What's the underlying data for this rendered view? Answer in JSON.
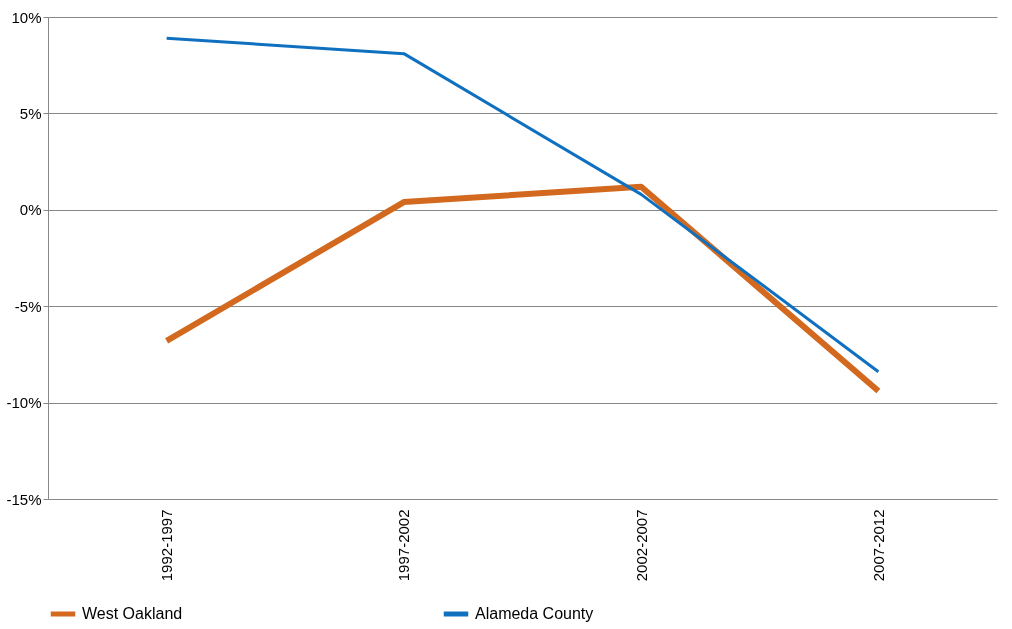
{
  "chart_data": {
    "type": "line",
    "categories": [
      "1992-1997",
      "1997-2002",
      "2002-2007",
      "2007-2012"
    ],
    "series": [
      {
        "name": "West Oakland",
        "color": "#d2691e",
        "values": [
          -6.8,
          0.4,
          1.2,
          -9.4
        ]
      },
      {
        "name": "Alameda County",
        "color": "#1070c0",
        "values": [
          8.9,
          8.1,
          0.8,
          -8.4
        ]
      }
    ],
    "ylim": [
      -15,
      10
    ],
    "yticks": [
      {
        "value": 10,
        "label": "10%"
      },
      {
        "value": 5,
        "label": "5%"
      },
      {
        "value": 0,
        "label": "0%"
      },
      {
        "value": -5,
        "label": "-5%"
      },
      {
        "value": -10,
        "label": "-10%"
      },
      {
        "value": -15,
        "label": "-15%"
      }
    ],
    "grid": "y",
    "legend": "bottom",
    "marker": "none",
    "line_style": "solid"
  }
}
